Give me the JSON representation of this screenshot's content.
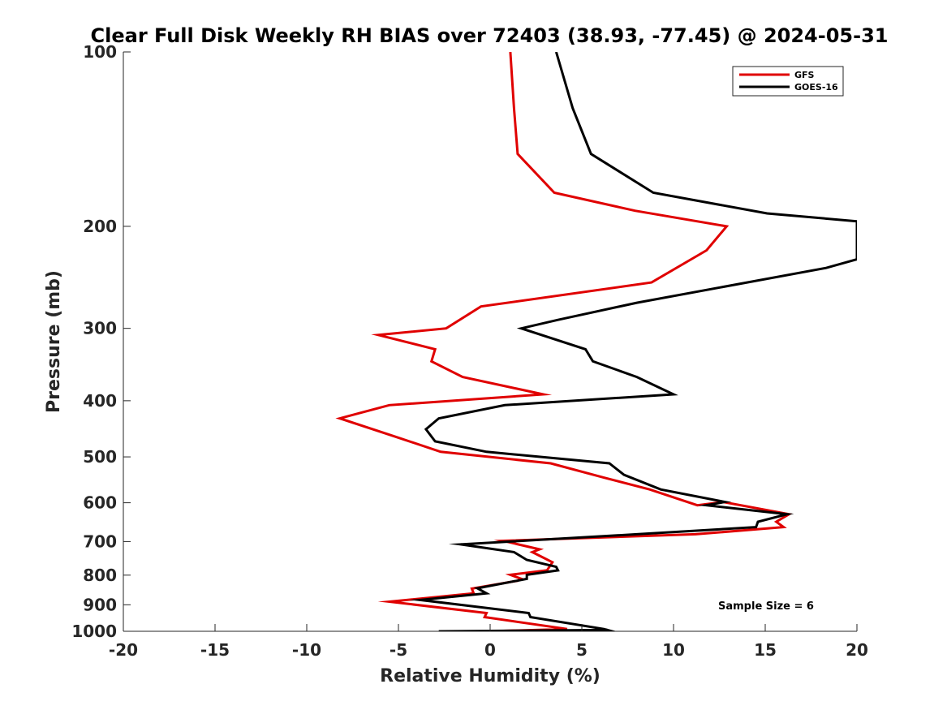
{
  "chart_data": {
    "type": "line",
    "title": "Clear Full Disk Weekly RH BIAS over 72403 (38.93, -77.45) @ 2024-05-31",
    "xlabel": "Relative Humidity (%)",
    "ylabel": "Pressure (mb)",
    "xlim": [
      -20,
      20
    ],
    "ylim": [
      1000,
      100
    ],
    "yscale": "log",
    "yreversed": true,
    "grid": false,
    "legend_position": "top-right",
    "x_ticks": [
      -20,
      -15,
      -10,
      -5,
      0,
      5,
      10,
      15,
      20
    ],
    "x_tick_labels": [
      "-20",
      "-15",
      "-10",
      "-5",
      "0",
      "5",
      "10",
      "15",
      "20"
    ],
    "y_ticks": [
      100,
      200,
      300,
      400,
      500,
      600,
      700,
      800,
      900,
      1000
    ],
    "y_tick_labels": [
      "100",
      "200",
      "300",
      "400",
      "500",
      "600",
      "700",
      "800",
      "900",
      "1000"
    ],
    "series": [
      {
        "name": "GFS",
        "color": "#e00000",
        "points": [
          [
            1.1,
            100
          ],
          [
            1.3,
            125
          ],
          [
            1.5,
            150
          ],
          [
            3.5,
            175
          ],
          [
            7.9,
            188
          ],
          [
            12.9,
            200
          ],
          [
            11.8,
            220
          ],
          [
            8.8,
            250
          ],
          [
            -0.5,
            275
          ],
          [
            -2.4,
            300
          ],
          [
            -6.1,
            308
          ],
          [
            -3.0,
            326
          ],
          [
            -3.2,
            342
          ],
          [
            -1.5,
            364
          ],
          [
            2.9,
            390
          ],
          [
            -5.5,
            407
          ],
          [
            -8.2,
            429
          ],
          [
            -5.2,
            461
          ],
          [
            -2.7,
            490
          ],
          [
            3.3,
            513
          ],
          [
            6.2,
            543
          ],
          [
            8.7,
            569
          ],
          [
            11.3,
            606
          ],
          [
            12.7,
            598
          ],
          [
            16.3,
            628
          ],
          [
            15.6,
            647
          ],
          [
            16.0,
            661
          ],
          [
            11.2,
            680
          ],
          [
            0.7,
            698
          ],
          [
            2.7,
            722
          ],
          [
            2.3,
            730
          ],
          [
            3.4,
            760
          ],
          [
            3.1,
            785
          ],
          [
            1.1,
            799
          ],
          [
            1.7,
            812
          ],
          [
            1.5,
            818
          ],
          [
            -1.0,
            844
          ],
          [
            -0.9,
            860
          ],
          [
            -5.5,
            889
          ],
          [
            -0.2,
            930
          ],
          [
            -0.3,
            945
          ],
          [
            4.2,
            991
          ],
          [
            0.0,
            1000
          ]
        ]
      },
      {
        "name": "GOES-16",
        "color": "#000000",
        "points": [
          [
            3.6,
            100
          ],
          [
            4.5,
            125
          ],
          [
            5.5,
            150
          ],
          [
            8.9,
            175
          ],
          [
            15.1,
            190
          ],
          [
            20.0,
            196
          ],
          [
            20.0,
            228
          ],
          [
            18.3,
            236
          ],
          [
            8.0,
            271
          ],
          [
            3.7,
            290
          ],
          [
            1.7,
            300
          ],
          [
            5.2,
            326
          ],
          [
            5.6,
            342
          ],
          [
            8.0,
            364
          ],
          [
            10.0,
            390
          ],
          [
            0.8,
            407
          ],
          [
            -2.8,
            429
          ],
          [
            -3.5,
            448
          ],
          [
            -3.0,
            470
          ],
          [
            -0.2,
            490
          ],
          [
            6.5,
            513
          ],
          [
            7.3,
            537
          ],
          [
            9.3,
            569
          ],
          [
            12.8,
            598
          ],
          [
            11.8,
            606
          ],
          [
            16.2,
            628
          ],
          [
            14.6,
            647
          ],
          [
            14.5,
            661
          ],
          [
            8.0,
            680
          ],
          [
            -1.6,
            708
          ],
          [
            1.3,
            730
          ],
          [
            2.0,
            753
          ],
          [
            3.6,
            774
          ],
          [
            3.7,
            785
          ],
          [
            2.0,
            799
          ],
          [
            2.0,
            812
          ],
          [
            -0.7,
            843
          ],
          [
            -0.2,
            860
          ],
          [
            -3.8,
            883
          ],
          [
            2.1,
            930
          ],
          [
            2.2,
            945
          ],
          [
            6.2,
            991
          ],
          [
            6.4,
            995
          ],
          [
            -2.8,
            1000
          ]
        ]
      }
    ],
    "annotation": "Sample Size = 6"
  }
}
